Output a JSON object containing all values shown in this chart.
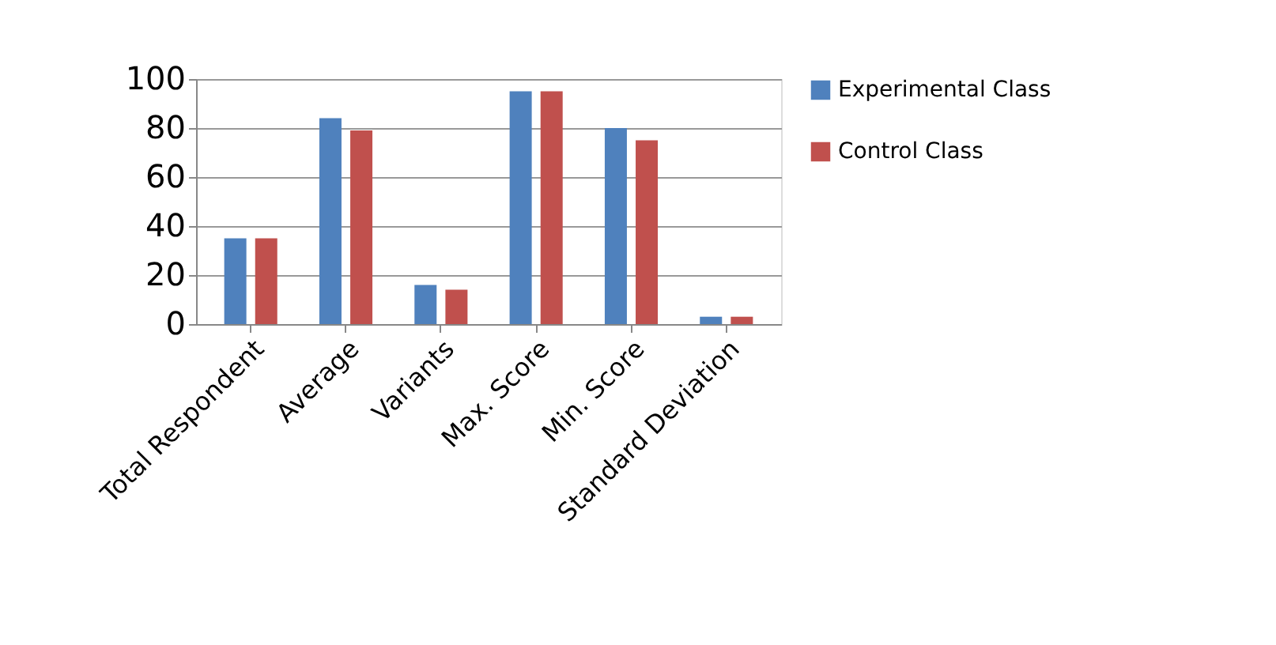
{
  "chart_data": {
    "type": "bar",
    "categories": [
      "Total Respondent",
      "Average",
      "Variants",
      "Max. Score",
      "Min. Score",
      "Standard Deviation"
    ],
    "series": [
      {
        "name": "Experimental Class",
        "color": "#4f81bd",
        "values": [
          35,
          84,
          16,
          95,
          80,
          3
        ]
      },
      {
        "name": "Control Class",
        "color": "#c0504d",
        "values": [
          35,
          79,
          14,
          95,
          75,
          3
        ]
      }
    ],
    "ylim": [
      0,
      100
    ],
    "yticks": [
      0,
      20,
      40,
      60,
      80,
      100
    ],
    "grid": "y",
    "legend": "right"
  }
}
